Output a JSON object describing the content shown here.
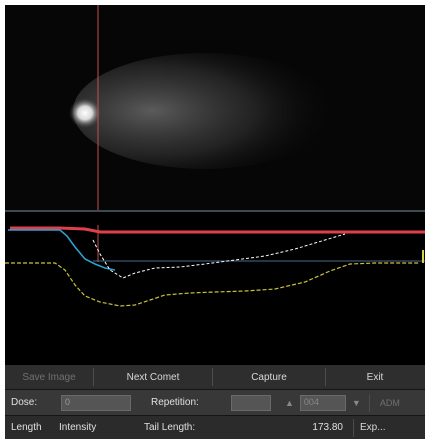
{
  "colors": {
    "cursor_line": "#c0504d",
    "head_profile": "#2e9fd0",
    "intensity_profile": "#ffffff",
    "tail_profile": "#ccc23a",
    "reference_line": "#e0404a",
    "baseline": "#4a6a8a"
  },
  "toolbar": {
    "save_image_label": "Save Image",
    "next_comet_label": "Next Comet",
    "capture_label": "Capture",
    "exit_label": "Exit"
  },
  "inputs": {
    "dose_label": "Dose:",
    "dose_value": "0",
    "repetition_label": "Repetition:",
    "repetition_value": "",
    "counter_up_icon": "triangle-up-icon",
    "counter_value": "004",
    "counter_down_icon": "triangle-down-icon",
    "mode_label": "ADM"
  },
  "results": {
    "length_label": "Length",
    "intensity_label": "Intensity",
    "tail_length_label": "Tail Length:",
    "tail_length_value": "173.80",
    "export_label": "Exp..."
  }
}
